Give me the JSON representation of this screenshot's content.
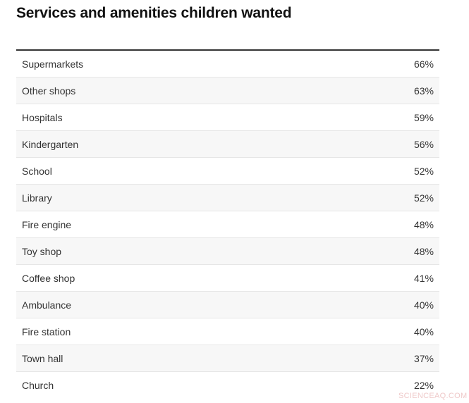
{
  "header": {
    "title": "Services and amenities children wanted"
  },
  "table": {
    "rows": [
      [
        "Supermarkets",
        "66%"
      ],
      [
        "Other shops",
        "63%"
      ],
      [
        "Hospitals",
        "59%"
      ],
      [
        "Kindergarten",
        "56%"
      ],
      [
        "School",
        "52%"
      ],
      [
        "Library",
        "52%"
      ],
      [
        "Fire engine",
        "48%"
      ],
      [
        "Toy shop",
        "48%"
      ],
      [
        "Coffee shop",
        "41%"
      ],
      [
        "Ambulance",
        "40%"
      ],
      [
        "Fire station",
        "40%"
      ],
      [
        "Town hall",
        "37%"
      ],
      [
        "Church",
        "22%"
      ]
    ]
  },
  "watermark": "SCIENCEAQ.COM"
}
